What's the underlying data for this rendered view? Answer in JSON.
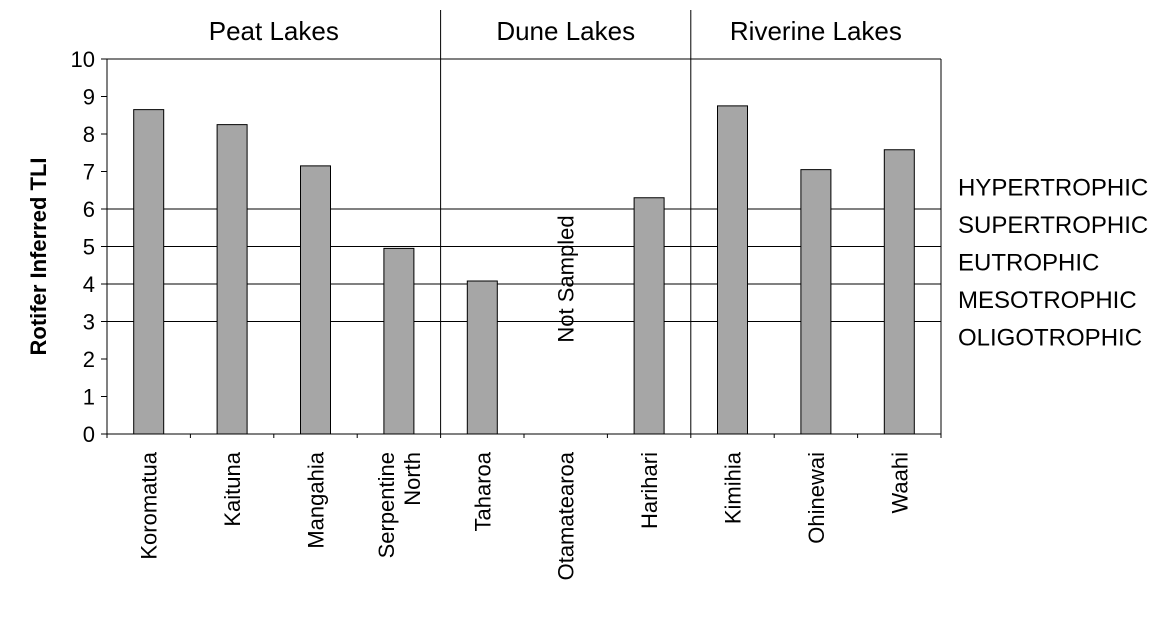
{
  "chart_data": {
    "type": "bar",
    "title": "",
    "xlabel": "",
    "ylabel": "Rotifer Inferred TLI",
    "ylim": [
      0,
      10
    ],
    "yticks": [
      0,
      1,
      2,
      3,
      4,
      5,
      6,
      7,
      8,
      9,
      10
    ],
    "grid": false,
    "categories": [
      [
        "Koromatua"
      ],
      [
        "Kaituna"
      ],
      [
        "Mangahia"
      ],
      [
        "Serpentine",
        "North"
      ],
      [
        "Taharoa"
      ],
      [
        "Otamatearoa"
      ],
      [
        "Harihari"
      ],
      [
        "Kimihia"
      ],
      [
        "Ohinewai"
      ],
      [
        "Waahi"
      ]
    ],
    "values": [
      8.65,
      8.25,
      7.15,
      4.95,
      4.08,
      null,
      6.3,
      8.75,
      7.05,
      7.58
    ],
    "bar_color": "#a6a6a6",
    "groups": [
      {
        "label": "Peat Lakes",
        "start": 0,
        "end": 3
      },
      {
        "label": "Dune Lakes",
        "start": 4,
        "end": 6
      },
      {
        "label": "Riverine Lakes",
        "start": 7,
        "end": 9
      }
    ],
    "reference_lines": [
      3,
      4,
      5,
      6
    ],
    "trophic_labels": [
      {
        "label": "HYPERTROPHIC",
        "y": 6.6
      },
      {
        "label": "SUPERTROPHIC",
        "y": 5.6
      },
      {
        "label": "EUTROPHIC",
        "y": 4.6
      },
      {
        "label": "MESOTROPHIC",
        "y": 3.6
      },
      {
        "label": "OLIGOTROPHIC",
        "y": 2.6
      }
    ],
    "annotations": [
      {
        "text": "Not Sampled",
        "category_index": 5,
        "y": 4
      }
    ]
  }
}
